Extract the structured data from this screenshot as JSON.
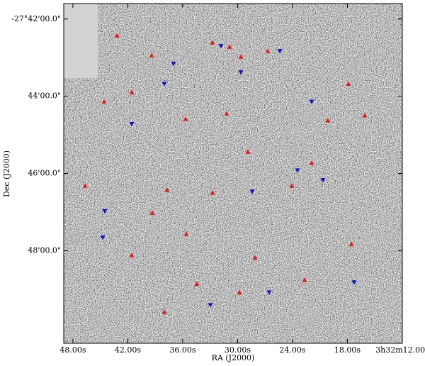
{
  "chart_data": {
    "type": "scatter",
    "x_label": "RA (J2000)",
    "y_label": "Dec (J2000)",
    "xlim": [
      49,
      12
    ],
    "ylim": [
      41.6,
      50.4
    ],
    "xticks": [
      {
        "value": 48,
        "label": "48.00s"
      },
      {
        "value": 42,
        "label": "42.00s"
      },
      {
        "value": 36,
        "label": "36.00s"
      },
      {
        "value": 30,
        "label": "30.00s"
      },
      {
        "value": 24,
        "label": "24.00s"
      },
      {
        "value": 18,
        "label": "18.00s"
      },
      {
        "value": 12,
        "label": "3h32m12.00s"
      }
    ],
    "yticks": [
      {
        "value": 42,
        "label": "-27°42'00.0\""
      },
      {
        "value": 44,
        "label": "44'00.0\""
      },
      {
        "value": 46,
        "label": "46'00.0\""
      },
      {
        "value": 48,
        "label": "48'00.0\""
      }
    ],
    "series": [
      {
        "color": "#e41a1c",
        "x": [
          43.19,
          39.4,
          32.75,
          30.89,
          26.71,
          29.65,
          17.89,
          41.57,
          44.59,
          31.2,
          20.13,
          16.1,
          35.69,
          28.88,
          21.91,
          46.68,
          37.7,
          32.75,
          24.08,
          39.32,
          35.61,
          41.57,
          28.1,
          17.58,
          34.45,
          29.8,
          38.01,
          22.68
        ],
        "values": [
          42.43,
          42.94,
          42.61,
          42.72,
          42.83,
          42.98,
          43.68,
          43.9,
          44.14,
          44.45,
          44.63,
          44.5,
          44.59,
          45.44,
          45.73,
          46.32,
          46.43,
          46.5,
          46.32,
          47.02,
          47.57,
          48.12,
          48.18,
          47.83,
          48.86,
          49.08,
          49.59,
          48.76
        ]
      },
      {
        "color": "#1010d0",
        "x": [
          41.57,
          38.01,
          31.82,
          29.65,
          25.39,
          44.51,
          23.46,
          20.67,
          28.41,
          37.0,
          21.91,
          17.27,
          44.74,
          26.55,
          32.97
        ],
        "values": [
          44.72,
          43.68,
          42.7,
          43.38,
          42.83,
          46.98,
          45.92,
          46.17,
          46.47,
          43.16,
          44.14,
          48.82,
          47.66,
          49.08,
          49.41
        ]
      }
    ]
  }
}
